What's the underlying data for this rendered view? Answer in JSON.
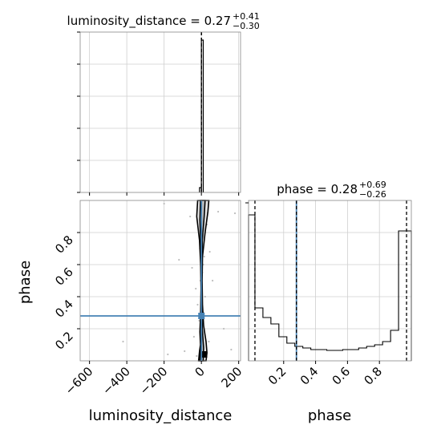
{
  "chart_data": [
    {
      "type": "histogram",
      "panel": "top-left",
      "title": "luminosity_distance = 0.27",
      "title_sup": "+0.41",
      "title_sub": "−0.30",
      "xlim": [
        -650,
        210
      ],
      "bins": [
        {
          "x0": -10,
          "x1": 0,
          "value": 0.03
        },
        {
          "x0": 0,
          "x1": 10,
          "value": 0.95
        }
      ],
      "quantile_lines": [
        -0.03,
        0.27,
        0.68
      ],
      "grid": true
    },
    {
      "type": "histogram",
      "panel": "bottom-right",
      "title": "phase = 0.28",
      "title_sup": "+0.69",
      "title_sub": "−0.26",
      "xlabel": "phase",
      "xlim": [
        -0.02,
        1.0
      ],
      "xticks": [
        0.2,
        0.4,
        0.6,
        0.8
      ],
      "xtick_labels": [
        "0.2",
        "0.4",
        "0.6",
        "0.8"
      ],
      "bin_edges": [
        -0.02,
        0.02,
        0.07,
        0.12,
        0.17,
        0.22,
        0.27,
        0.32,
        0.37,
        0.42,
        0.47,
        0.52,
        0.57,
        0.62,
        0.67,
        0.72,
        0.77,
        0.82,
        0.87,
        0.92,
        0.97,
        1.0
      ],
      "values": [
        0.91,
        0.33,
        0.27,
        0.23,
        0.15,
        0.11,
        0.09,
        0.08,
        0.07,
        0.07,
        0.065,
        0.065,
        0.07,
        0.07,
        0.08,
        0.09,
        0.1,
        0.12,
        0.19,
        0.81,
        0.81
      ],
      "quantile_lines": [
        0.02,
        0.28,
        0.97
      ],
      "truth_line": 0.28,
      "grid": true
    },
    {
      "type": "scatter-contour",
      "panel": "bottom-left",
      "xlabel": "luminosity_distance",
      "ylabel": "phase",
      "xlim": [
        -650,
        210
      ],
      "ylim": [
        0.0,
        1.0
      ],
      "xticks": [
        -600,
        -400,
        -200,
        0,
        200
      ],
      "xtick_labels": [
        "−600",
        "−400",
        "−200",
        "0",
        "200"
      ],
      "yticks": [
        0.2,
        0.4,
        0.6,
        0.8
      ],
      "ytick_labels": [
        "0.2",
        "0.4",
        "0.6",
        "0.8"
      ],
      "truth": {
        "x": 0.27,
        "y": 0.28
      },
      "scatter_points": [
        {
          "x": -420,
          "y": 0.12
        },
        {
          "x": -200,
          "y": 0.98
        },
        {
          "x": -180,
          "y": 0.04
        },
        {
          "x": -120,
          "y": 0.63
        },
        {
          "x": -90,
          "y": 0.06
        },
        {
          "x": -60,
          "y": 0.9
        },
        {
          "x": -30,
          "y": 0.45
        },
        {
          "x": -20,
          "y": 0.35
        },
        {
          "x": -10,
          "y": 0.8
        },
        {
          "x": -5,
          "y": 0.5
        },
        {
          "x": 5,
          "y": 0.55
        },
        {
          "x": 10,
          "y": 0.6
        },
        {
          "x": 15,
          "y": 0.65
        },
        {
          "x": -8,
          "y": 0.7
        },
        {
          "x": 8,
          "y": 0.75
        },
        {
          "x": -12,
          "y": 0.25
        },
        {
          "x": 12,
          "y": 0.3
        },
        {
          "x": 20,
          "y": 0.4
        },
        {
          "x": 30,
          "y": 0.85
        },
        {
          "x": 40,
          "y": 0.12
        },
        {
          "x": 60,
          "y": 0.5
        },
        {
          "x": 90,
          "y": 0.93
        },
        {
          "x": 120,
          "y": 0.2
        },
        {
          "x": 160,
          "y": 0.07
        },
        {
          "x": 180,
          "y": 0.92
        },
        {
          "x": -40,
          "y": 0.15
        },
        {
          "x": 25,
          "y": 0.95
        },
        {
          "x": -25,
          "y": 0.03
        },
        {
          "x": 45,
          "y": 0.68
        },
        {
          "x": -50,
          "y": 0.58
        }
      ],
      "contours": [
        {
          "points": [
            [
              -15,
              0.0
            ],
            [
              -10,
              0.06
            ],
            [
              -5,
              0.1
            ],
            [
              -8,
              0.18
            ],
            [
              -4,
              0.3
            ],
            [
              -2,
              0.45
            ],
            [
              -4,
              0.6
            ],
            [
              -10,
              0.75
            ],
            [
              -25,
              0.9
            ],
            [
              -20,
              1.0
            ],
            [
              40,
              1.0
            ],
            [
              35,
              0.93
            ],
            [
              20,
              0.8
            ],
            [
              6,
              0.65
            ],
            [
              4,
              0.5
            ],
            [
              6,
              0.35
            ],
            [
              12,
              0.22
            ],
            [
              25,
              0.12
            ],
            [
              30,
              0.05
            ],
            [
              25,
              0.0
            ]
          ]
        },
        {
          "points": [
            [
              -8,
              0.0
            ],
            [
              -4,
              0.08
            ],
            [
              -1,
              0.15
            ],
            [
              -1,
              0.3
            ],
            [
              -1,
              0.5
            ],
            [
              -3,
              0.7
            ],
            [
              -8,
              0.88
            ],
            [
              -5,
              1.0
            ],
            [
              20,
              1.0
            ],
            [
              15,
              0.9
            ],
            [
              5,
              0.75
            ],
            [
              2,
              0.55
            ],
            [
              2,
              0.35
            ],
            [
              5,
              0.2
            ],
            [
              12,
              0.08
            ],
            [
              10,
              0.0
            ]
          ]
        }
      ],
      "grid": true
    }
  ]
}
